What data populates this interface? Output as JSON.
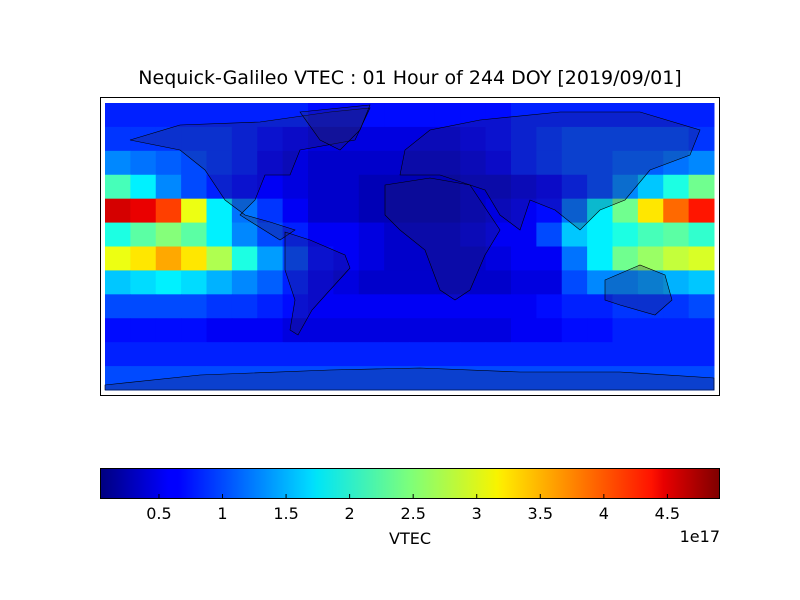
{
  "chart_data": {
    "type": "heatmap",
    "title": "Nequick-Galileo VTEC : 01 Hour of 244 DOY [2019/09/01]",
    "colormap": "jet",
    "values": [
      [
        0.8,
        0.8,
        0.8,
        0.8,
        0.8,
        0.8,
        0.8,
        0.8,
        0.7,
        0.7,
        0.7,
        0.7,
        0.7,
        0.7,
        0.7,
        0.7,
        0.8,
        0.8,
        0.8,
        0.8,
        0.8,
        0.8,
        0.8,
        0.8
      ],
      [
        0.9,
        0.9,
        0.9,
        0.9,
        0.9,
        0.8,
        0.7,
        0.6,
        0.5,
        0.5,
        0.5,
        0.5,
        0.5,
        0.5,
        0.6,
        0.7,
        0.8,
        0.9,
        1.0,
        1.0,
        1.0,
        1.0,
        1.0,
        0.9
      ],
      [
        1.3,
        1.2,
        1.1,
        1.0,
        0.9,
        0.8,
        0.6,
        0.5,
        0.4,
        0.4,
        0.4,
        0.4,
        0.4,
        0.4,
        0.5,
        0.6,
        0.8,
        0.9,
        1.0,
        1.0,
        1.1,
        1.1,
        1.2,
        1.3
      ],
      [
        2.2,
        1.8,
        1.3,
        1.0,
        0.8,
        0.7,
        0.6,
        0.5,
        0.4,
        0.4,
        0.3,
        0.3,
        0.3,
        0.3,
        0.4,
        0.4,
        0.5,
        0.6,
        0.8,
        1.0,
        1.3,
        1.6,
        2.0,
        2.4
      ],
      [
        4.5,
        4.4,
        4.0,
        3.0,
        1.8,
        1.2,
        0.9,
        0.6,
        0.4,
        0.4,
        0.3,
        0.3,
        0.3,
        0.3,
        0.4,
        0.5,
        0.6,
        0.7,
        1.2,
        1.8,
        2.4,
        3.2,
        3.8,
        4.2
      ],
      [
        2.0,
        2.3,
        2.5,
        2.3,
        1.8,
        1.3,
        1.0,
        0.8,
        0.6,
        0.6,
        0.5,
        0.4,
        0.4,
        0.4,
        0.5,
        0.6,
        0.6,
        1.0,
        1.6,
        1.8,
        2.0,
        2.2,
        2.3,
        2.1
      ],
      [
        3.0,
        3.2,
        3.5,
        3.2,
        2.7,
        2.0,
        1.4,
        1.0,
        0.7,
        0.6,
        0.5,
        0.4,
        0.4,
        0.4,
        0.4,
        0.5,
        0.6,
        0.6,
        1.2,
        1.8,
        2.4,
        2.6,
        2.8,
        2.9
      ],
      [
        1.6,
        1.7,
        1.8,
        1.7,
        1.5,
        1.3,
        1.1,
        0.8,
        0.6,
        0.5,
        0.4,
        0.4,
        0.4,
        0.4,
        0.4,
        0.4,
        0.5,
        0.5,
        1.0,
        1.3,
        1.3,
        1.4,
        1.5,
        1.6
      ],
      [
        1.0,
        1.0,
        1.0,
        1.0,
        0.9,
        0.9,
        0.8,
        0.7,
        0.6,
        0.6,
        0.6,
        0.6,
        0.6,
        0.6,
        0.6,
        0.6,
        0.6,
        0.7,
        0.8,
        0.8,
        0.9,
        0.9,
        0.9,
        1.0
      ],
      [
        0.7,
        0.7,
        0.7,
        0.7,
        0.6,
        0.6,
        0.6,
        0.5,
        0.5,
        0.5,
        0.5,
        0.5,
        0.5,
        0.5,
        0.5,
        0.5,
        0.6,
        0.6,
        0.7,
        0.7,
        0.8,
        0.8,
        0.8,
        0.8
      ],
      [
        0.8,
        0.8,
        0.8,
        0.8,
        0.8,
        0.8,
        0.8,
        0.8,
        0.8,
        0.8,
        0.8,
        0.8,
        0.8,
        0.8,
        0.8,
        0.8,
        0.8,
        0.8,
        0.8,
        0.8,
        0.8,
        0.8,
        0.8,
        0.8
      ],
      [
        1.0,
        1.0,
        1.0,
        1.0,
        1.0,
        1.0,
        1.0,
        1.0,
        1.0,
        1.0,
        1.0,
        1.0,
        1.0,
        1.0,
        1.0,
        1.0,
        1.0,
        1.0,
        1.0,
        1.0,
        1.0,
        1.0,
        1.0,
        1.0
      ]
    ],
    "colorbar": {
      "clim": [
        0.04,
        4.91
      ],
      "ticks": [
        0.5,
        1.0,
        1.5,
        2.0,
        2.5,
        3.0,
        3.5,
        4.0,
        4.5
      ],
      "label": "VTEC",
      "offset_label": "1e17"
    }
  }
}
